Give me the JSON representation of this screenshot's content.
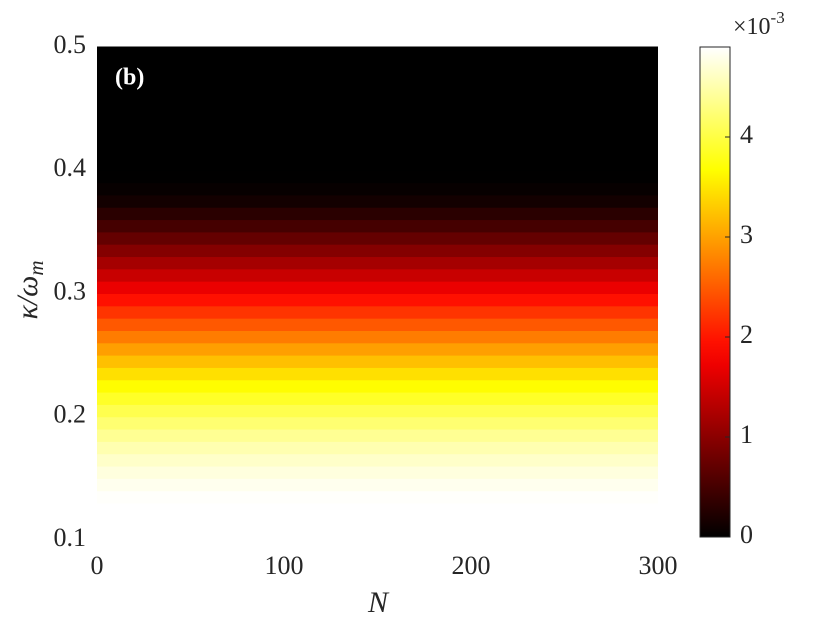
{
  "chart_data": {
    "type": "heatmap",
    "annotation": "(b)",
    "xlabel": "N",
    "ylabel": "κ/ω",
    "ylabel_sub": "m",
    "xlim": [
      0,
      300
    ],
    "xticks": [
      0,
      100,
      200,
      300
    ],
    "ylim": [
      0.1,
      0.5
    ],
    "yticks": [
      0.1,
      0.2,
      0.3,
      0.4,
      0.5
    ],
    "y_bins": [
      0.13,
      0.14,
      0.15,
      0.16,
      0.17,
      0.18,
      0.19,
      0.2,
      0.21,
      0.22,
      0.23,
      0.24,
      0.25,
      0.26,
      0.27,
      0.28,
      0.29,
      0.3,
      0.31,
      0.32,
      0.33,
      0.34,
      0.35,
      0.36,
      0.37,
      0.38,
      0.39,
      0.4,
      0.41,
      0.42,
      0.43,
      0.44,
      0.45,
      0.46,
      0.47,
      0.48,
      0.49,
      0.5
    ],
    "values": [
      0.00488,
      0.00482,
      0.00474,
      0.00464,
      0.00452,
      0.00438,
      0.00422,
      0.00405,
      0.00386,
      0.00366,
      0.00345,
      0.00322,
      0.00298,
      0.00273,
      0.00247,
      0.00221,
      0.00195,
      0.00169,
      0.00144,
      0.00119,
      0.00095,
      0.00072,
      0.0005,
      0.0003,
      0.00014,
      5e-05,
      1e-05,
      0,
      0,
      0,
      0,
      0,
      0,
      0,
      0,
      0,
      0
    ],
    "colormap": "hot",
    "clim": [
      0,
      0.0049
    ],
    "cticks": [
      0,
      {
        "value": 0.001,
        "label": "1"
      },
      {
        "value": 0.002,
        "label": "2"
      },
      {
        "value": 0.003,
        "label": "3"
      },
      {
        "value": 0.004,
        "label": "4"
      }
    ],
    "colorbar_exponent_base": "×10",
    "colorbar_exponent": "-3"
  }
}
